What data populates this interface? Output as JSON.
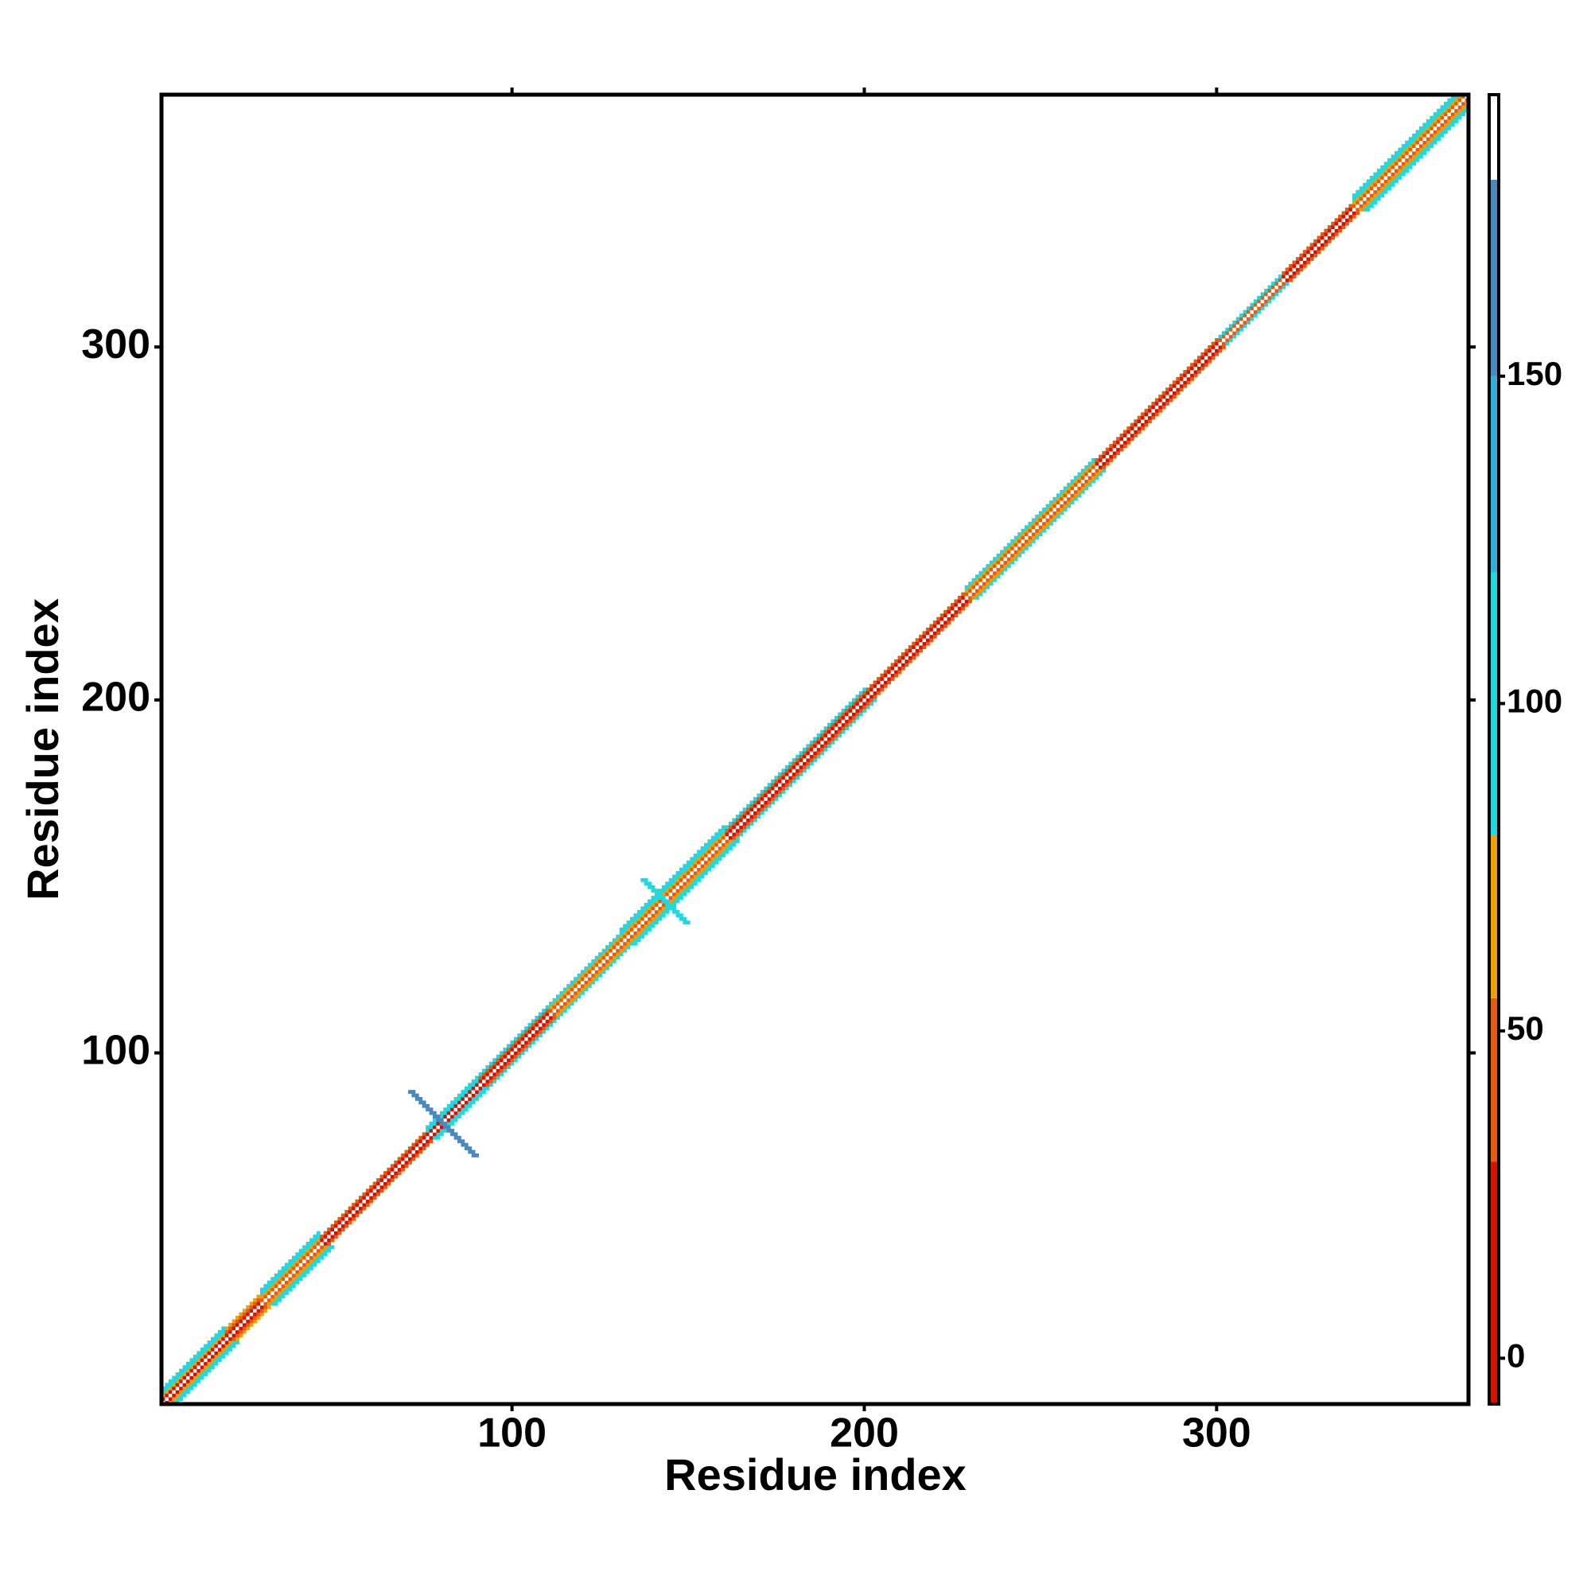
{
  "chart_data": {
    "type": "heatmap",
    "xlabel": "Residue index",
    "ylabel": "Residue index",
    "xlim": [
      0.5,
      371.5
    ],
    "ylim": [
      0.5,
      371.5
    ],
    "xticks": [
      100,
      200,
      300
    ],
    "yticks": [
      100,
      200,
      300
    ],
    "segments": [
      {
        "from": 1,
        "to": 18,
        "values": [
          185,
          30,
          70,
          100,
          110
        ]
      },
      {
        "from": 19,
        "to": 28,
        "values": [
          185,
          20,
          40,
          70
        ]
      },
      {
        "from": 29,
        "to": 45,
        "values": [
          185,
          35,
          70,
          100,
          105
        ]
      },
      {
        "from": 46,
        "to": 75,
        "values": [
          185,
          10,
          40
        ]
      },
      {
        "from": 76,
        "to": 90,
        "values": [
          185,
          10,
          100,
          120
        ]
      },
      {
        "from": 91,
        "to": 110,
        "values": [
          185,
          20,
          45,
          100
        ]
      },
      {
        "from": 111,
        "to": 130,
        "values": [
          185,
          40,
          70,
          100
        ]
      },
      {
        "from": 131,
        "to": 160,
        "values": [
          185,
          35,
          70,
          100,
          105
        ]
      },
      {
        "from": 161,
        "to": 200,
        "values": [
          185,
          15,
          45,
          100
        ]
      },
      {
        "from": 201,
        "to": 228,
        "values": [
          185,
          5,
          35
        ]
      },
      {
        "from": 229,
        "to": 265,
        "values": [
          185,
          40,
          70,
          100
        ]
      },
      {
        "from": 266,
        "to": 300,
        "values": [
          185,
          10,
          40
        ]
      },
      {
        "from": 301,
        "to": 318,
        "values": [
          185,
          40,
          100
        ]
      },
      {
        "from": 319,
        "to": 338,
        "values": [
          185,
          5,
          35
        ]
      },
      {
        "from": 339,
        "to": 371,
        "values": [
          185,
          45,
          75,
          100,
          110
        ]
      }
    ],
    "crosses": [
      {
        "center": 80,
        "half_length": 9,
        "value": 160
      },
      {
        "center": 143,
        "half_length": 6,
        "value": 100
      }
    ],
    "colorbar": {
      "lim": [
        -7,
        193
      ],
      "ticks": [
        0,
        50,
        100,
        150
      ],
      "breaks": [
        -7,
        30,
        55,
        80,
        120,
        150,
        180,
        193
      ],
      "colors": [
        "#d81000",
        "#e85a10",
        "#f0a000",
        "#20d8e0",
        "#30b0d8",
        "#4a88c0",
        "#ffffff"
      ]
    }
  }
}
